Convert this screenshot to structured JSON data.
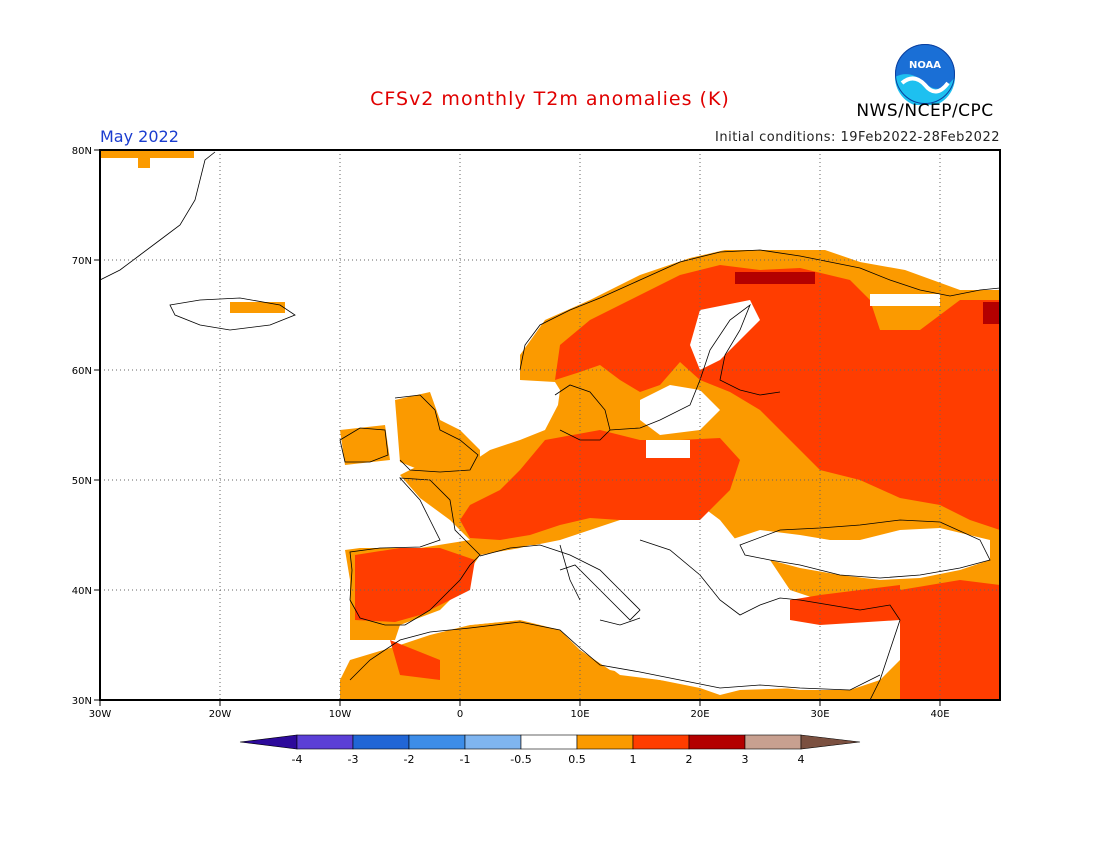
{
  "header": {
    "title": "CFSv2 monthly T2m anomalies (K)",
    "agency": "NWS/NCEP/CPC",
    "month": "May 2022",
    "initial_conditions": "Initial conditions: 19Feb2022-28Feb2022",
    "logo_text": "NOAA"
  },
  "axes": {
    "lat_ticks": [
      "80N",
      "70N",
      "60N",
      "50N",
      "40N",
      "30N"
    ],
    "lon_ticks": [
      "30W",
      "20W",
      "10W",
      "0",
      "10E",
      "20E",
      "30E",
      "40E"
    ]
  },
  "colorbar": {
    "labels": [
      "-4",
      "-3",
      "-2",
      "-1",
      "-0.5",
      "0.5",
      "1",
      "2",
      "3",
      "4"
    ],
    "colors": [
      "#2d0a9b",
      "#5b3fd6",
      "#2166d6",
      "#3d8de8",
      "#7fb5f0",
      "#ffffff",
      "#fb9a00",
      "#ff3d00",
      "#b30000",
      "#c8a090",
      "#7b5040"
    ]
  },
  "map_colors": {
    "orange": "#fb9a00",
    "red": "#ff3d00",
    "darkred": "#b30000",
    "coast": "#000000"
  }
}
